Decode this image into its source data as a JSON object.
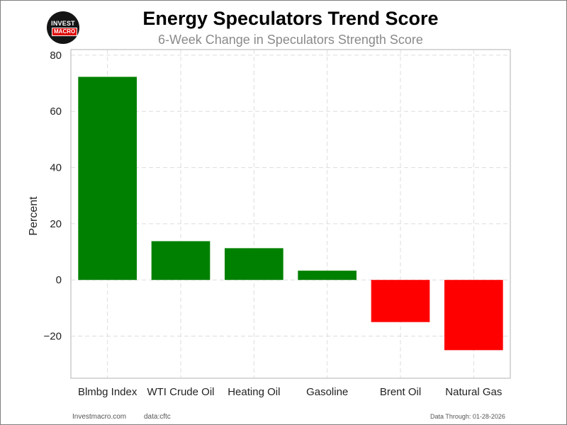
{
  "header": {
    "title": "Energy Speculators Trend Score",
    "subtitle": "6-Week Change in Speculators Strength Score",
    "logo_top": "INVEST",
    "logo_bottom": "MACRO"
  },
  "footer": {
    "site": "Investmacro.com",
    "source": "data:cftc",
    "date": "Data Through: 01-28-2026"
  },
  "colors": {
    "positive": "#008000",
    "negative": "#ff0000",
    "grid": "#dddddd",
    "axis_frame": "#cccccc"
  },
  "chart_data": {
    "type": "bar",
    "title": "Energy Speculators Trend Score",
    "subtitle": "6-Week Change in Speculators Strength Score",
    "xlabel": "",
    "ylabel": "Percent",
    "categories": [
      "Blmbg Index",
      "WTI Crude Oil",
      "Heating Oil",
      "Gasoline",
      "Brent Oil",
      "Natural Gas"
    ],
    "values": [
      72.3,
      13.8,
      11.3,
      3.3,
      -15.0,
      -25.0
    ],
    "ylim": [
      -35,
      82
    ],
    "yticks": [
      -20,
      0,
      20,
      40,
      60,
      80
    ],
    "ytick_labels": [
      "−20",
      "0",
      "20",
      "40",
      "60",
      "80"
    ],
    "grid": true,
    "legend": "none"
  }
}
